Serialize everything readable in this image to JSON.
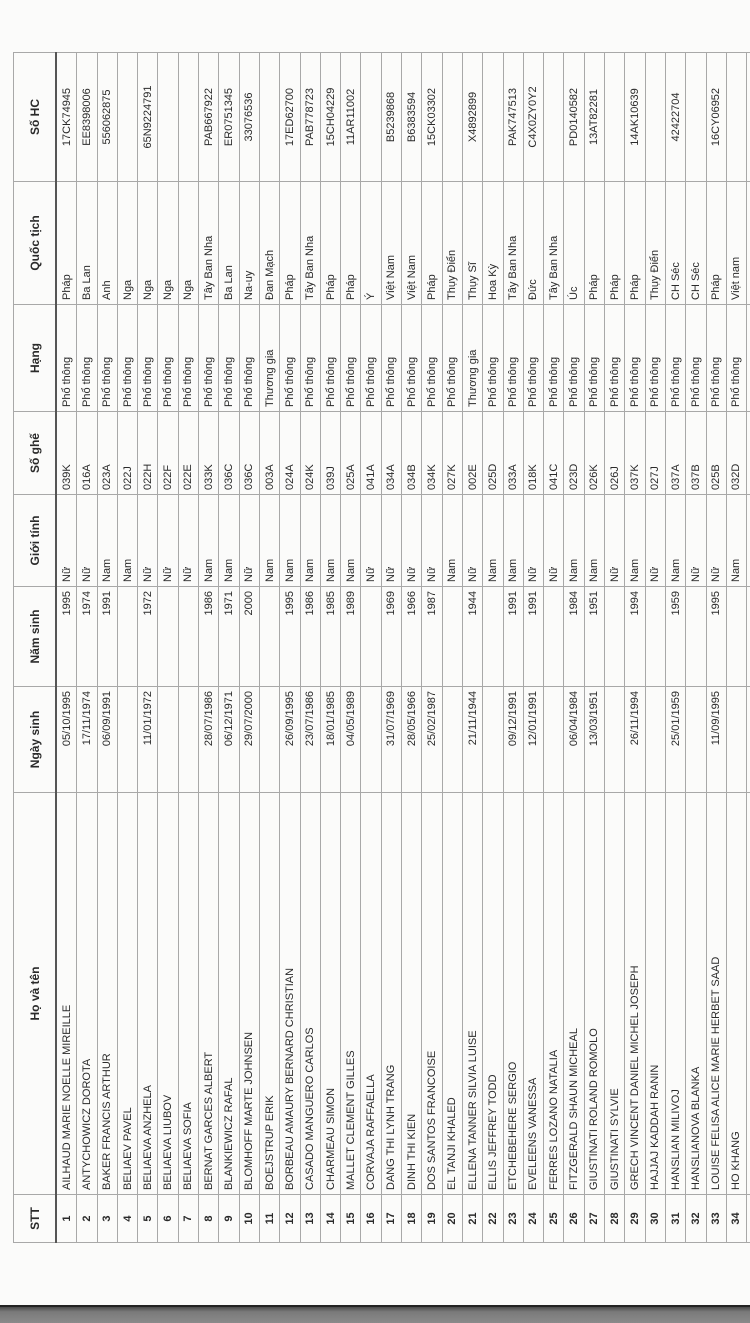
{
  "headers": [
    "STT",
    "Họ và tên",
    "Ngày sinh",
    "Năm sinh",
    "Giới tính",
    "Số ghế",
    "Hạng",
    "Quốc tịch",
    "Số HC"
  ],
  "rows": [
    [
      "1",
      "AILHAUD MARIE NOELLE MIREILLE",
      "05/10/1995",
      "1995",
      "Nữ",
      "039K",
      "Phổ thông",
      "Pháp",
      "17CK74945"
    ],
    [
      "2",
      "ANTYCHOWICZ DOROTA",
      "17/11/1974",
      "1974",
      "Nữ",
      "016A",
      "Phổ thông",
      "Ba Lan",
      "EE8398006"
    ],
    [
      "3",
      "BAKER FRANCIS ARTHUR",
      "06/09/1991",
      "1991",
      "Nam",
      "023A",
      "Phổ thông",
      "Anh",
      "556062875"
    ],
    [
      "4",
      "BELIAEV PAVEL",
      "",
      "",
      "Nam",
      "022J",
      "Phổ thông",
      "Nga",
      ""
    ],
    [
      "5",
      "BELIAEVA ANZHELA",
      "11/01/1972",
      "1972",
      "Nữ",
      "022H",
      "Phổ thông",
      "Nga",
      "65N9224791"
    ],
    [
      "6",
      "BELIAEVA LIUBOV",
      "",
      "",
      "Nữ",
      "022F",
      "Phổ thông",
      "Nga",
      ""
    ],
    [
      "7",
      "BELIAEVA SOFIA",
      "",
      "",
      "Nữ",
      "022E",
      "Phổ thông",
      "Nga",
      ""
    ],
    [
      "8",
      "BERNAT GARCES ALBERT",
      "28/07/1986",
      "1986",
      "Nam",
      "033K",
      "Phổ thông",
      "Tây Ban Nha",
      "PAB667922"
    ],
    [
      "9",
      "BLANKIEWICZ RAFAL",
      "06/12/1971",
      "1971",
      "Nam",
      "036C",
      "Phổ thông",
      "Ba Lan",
      "ER0751345"
    ],
    [
      "10",
      "BLOMHOFF MARTE JOHNSEN",
      "29/07/2000",
      "2000",
      "Nữ",
      "036C",
      "Phổ thông",
      "Na-uy",
      "33076536"
    ],
    [
      "11",
      "BOEJSTRUP ERIK",
      "",
      "",
      "Nam",
      "003A",
      "Thương gia",
      "Đan Mạch",
      ""
    ],
    [
      "12",
      "BORBEAU AMAURY BERNARD CHRISTIAN",
      "26/09/1995",
      "1995",
      "Nam",
      "024A",
      "Phổ thông",
      "Pháp",
      "17ED62700"
    ],
    [
      "13",
      "CASADO MANGUERO CARLOS",
      "23/07/1986",
      "1986",
      "Nam",
      "024K",
      "Phổ thông",
      "Tây Ban Nha",
      "PAB778723"
    ],
    [
      "14",
      "CHARMEAU SIMON",
      "18/01/1985",
      "1985",
      "Nam",
      "039J",
      "Phổ thông",
      "Pháp",
      "15CH04229"
    ],
    [
      "15",
      "MALLET CLEMENT GILLES",
      "04/05/1989",
      "1989",
      "Nam",
      "025A",
      "Phổ thông",
      "Pháp",
      "11AR11002"
    ],
    [
      "16",
      "CORVAJA RAFFAELLA",
      "",
      "",
      "Nữ",
      "041A",
      "Phổ thông",
      "Ý",
      ""
    ],
    [
      "17",
      "DANG THI LYNH TRANG",
      "31/07/1969",
      "1969",
      "Nữ",
      "034A",
      "Phổ thông",
      "Việt Nam",
      "B5239868"
    ],
    [
      "18",
      "DINH THI KIEN",
      "28/05/1966",
      "1966",
      "Nữ",
      "034B",
      "Phổ thông",
      "Việt Nam",
      "B6383594"
    ],
    [
      "19",
      "DOS SANTOS FRANCOISE",
      "25/02/1987",
      "1987",
      "Nữ",
      "034K",
      "Phổ thông",
      "Pháp",
      "15CK03302"
    ],
    [
      "20",
      "EL TANJI KHALED",
      "",
      "",
      "Nam",
      "027K",
      "Phổ thông",
      "Thụy Điển",
      ""
    ],
    [
      "21",
      "ELLENA TANNER SILVIA LUISE",
      "21/11/1944",
      "1944",
      "Nữ",
      "002E",
      "Thương gia",
      "Thụy Sĩ",
      "X4892899"
    ],
    [
      "22",
      "ELLIS JEFFREY TODD",
      "",
      "",
      "Nam",
      "025D",
      "Phổ thông",
      "Hoa Kỳ",
      ""
    ],
    [
      "23",
      "ETCHEBEHERE SERGIO",
      "09/12/1991",
      "1991",
      "Nam",
      "033A",
      "Phổ thông",
      "Tây Ban Nha",
      "PAK747513"
    ],
    [
      "24",
      "EVELEENS VANESSA",
      "12/01/1991",
      "1991",
      "Nữ",
      "018K",
      "Phổ thông",
      "Đức",
      "C4X0ZY0Y2"
    ],
    [
      "25",
      "FERRES LOZANO NATALIA",
      "",
      "",
      "Nữ",
      "041C",
      "Phổ thông",
      "Tây Ban Nha",
      ""
    ],
    [
      "26",
      "FITZGERALD SHAUN MICHEAL",
      "06/04/1984",
      "1984",
      "Nam",
      "023D",
      "Phổ thông",
      "Úc",
      "PD0140582"
    ],
    [
      "27",
      "GIUSTINATI ROLAND ROMOLO",
      "13/03/1951",
      "1951",
      "Nam",
      "026K",
      "Phổ thông",
      "Pháp",
      "13AT82281"
    ],
    [
      "28",
      "GIUSTINATI SYLVIE",
      "",
      "",
      "Nữ",
      "026J",
      "Phổ thông",
      "Pháp",
      ""
    ],
    [
      "29",
      "GRECH VINCENT DANIEL MICHEL JOSEPH",
      "26/11/1994",
      "1994",
      "Nam",
      "037K",
      "Phổ thông",
      "Pháp",
      "14AK10639"
    ],
    [
      "30",
      "HAJJAJ KADDAH RANIN",
      "",
      "",
      "Nữ",
      "027J",
      "Phổ thông",
      "Thụy Điển",
      ""
    ],
    [
      "31",
      "HANSLIAN MILIVOJ",
      "25/01/1959",
      "1959",
      "Nam",
      "037A",
      "Phổ thông",
      "CH Séc",
      "42422704"
    ],
    [
      "32",
      "HANSLIANOVA BLANKA",
      "",
      "",
      "Nữ",
      "037B",
      "Phổ thông",
      "CH Séc",
      ""
    ],
    [
      "33",
      "LOUISE FELISA ALICE MARIE HERBET SAAD",
      "11/09/1995",
      "1995",
      "Nữ",
      "025B",
      "Phổ thông",
      "Pháp",
      "16CY06952"
    ],
    [
      "34",
      "HO KHANG",
      "",
      "",
      "Nam",
      "032D",
      "Phổ thông",
      "Việt nam",
      ""
    ]
  ]
}
